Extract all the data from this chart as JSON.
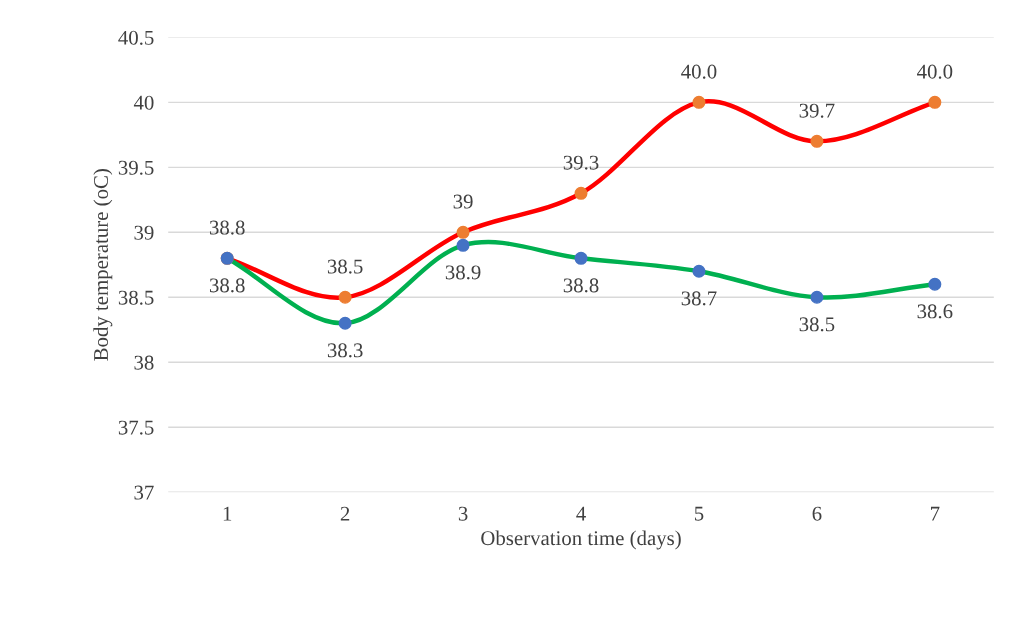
{
  "chart_data": {
    "type": "line",
    "xlabel": "Observation time (days)",
    "ylabel": "Body temperature (oC)",
    "categories": [
      "1",
      "2",
      "3",
      "4",
      "5",
      "6",
      "7"
    ],
    "series": [
      {
        "color": "#ff0000",
        "colors": [
          "#ed7d31",
          "#ed7d31",
          "#ed7d31",
          "#ed7d31",
          "#ed7d31",
          "#ed7d31",
          "#ed7d31"
        ],
        "values": [
          38.8,
          38.5,
          39.0,
          39.3,
          40.0,
          39.7,
          40.0
        ],
        "value_labels": [
          "38.8",
          "38.5",
          "39",
          "39.3",
          "40.0",
          "39.7",
          "40.0"
        ]
      },
      {
        "color": "#00b050",
        "colors": [
          "#4472c4",
          "#4472c4",
          "#4472c4",
          "#4472c4",
          "#4472c4",
          "#4472c4",
          "#4472c4"
        ],
        "values": [
          38.8,
          38.3,
          38.9,
          38.8,
          38.7,
          38.5,
          38.6
        ],
        "value_labels": [
          "38.8",
          "38.3",
          "38.9",
          "38.8",
          "38.7",
          "38.5",
          "38.6"
        ]
      }
    ],
    "ylim": [
      37,
      40.5
    ],
    "yticks": [
      37,
      37.5,
      38,
      38.5,
      39,
      39.5,
      40,
      40.5
    ],
    "grid": "y",
    "marker": "circle",
    "line_style": "solid"
  }
}
